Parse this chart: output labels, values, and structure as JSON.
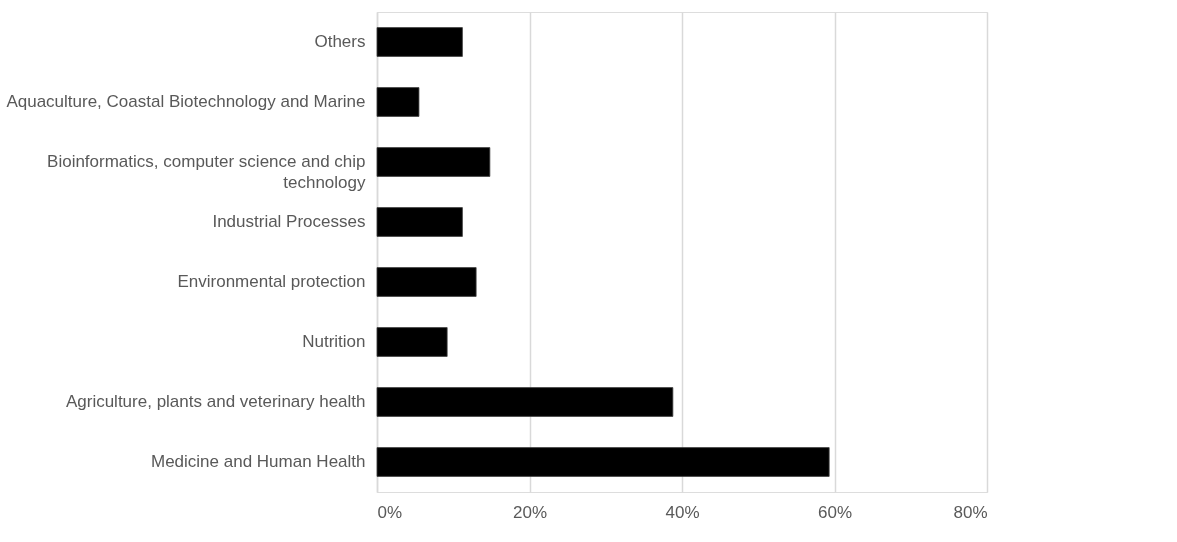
{
  "chart_data": {
    "type": "bar",
    "orientation": "horizontal",
    "categories": [
      "Others",
      "Aquaculture, Coastal Biotechnology and Marine",
      "Bioinformatics, computer science and chip technology",
      "Industrial Processes",
      "Environmental protection",
      "Nutrition",
      "Agriculture, plants and veterinary health",
      "Medicine and Human Health"
    ],
    "values": [
      11.2,
      5.5,
      14.8,
      11.2,
      13.0,
      9.2,
      38.8,
      59.3
    ],
    "color": "#000000",
    "xlim": [
      0,
      80
    ],
    "xticks": [
      {
        "value": 0,
        "label": "0%"
      },
      {
        "value": 20,
        "label": "20%"
      },
      {
        "value": 40,
        "label": "40%"
      },
      {
        "value": 60,
        "label": "60%"
      },
      {
        "value": 80,
        "label": "80%"
      }
    ],
    "grid": "x"
  }
}
